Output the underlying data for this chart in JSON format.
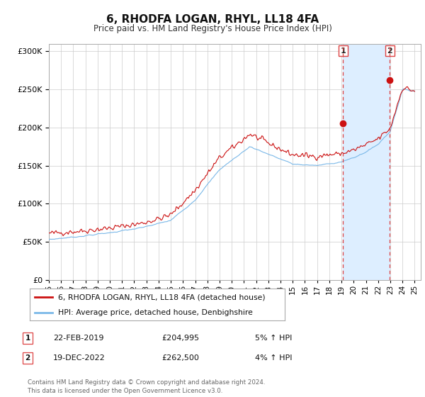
{
  "title": "6, RHODFA LOGAN, RHYL, LL18 4FA",
  "subtitle": "Price paid vs. HM Land Registry's House Price Index (HPI)",
  "legend_line1": "6, RHODFA LOGAN, RHYL, LL18 4FA (detached house)",
  "legend_line2": "HPI: Average price, detached house, Denbighshire",
  "sale1_label": "1",
  "sale1_date": "22-FEB-2019",
  "sale1_price": "£204,995",
  "sale1_hpi": "5% ↑ HPI",
  "sale1_year": 2019.13,
  "sale1_value": 204995,
  "sale2_label": "2",
  "sale2_date": "19-DEC-2022",
  "sale2_price": "£262,500",
  "sale2_hpi": "4% ↑ HPI",
  "sale2_year": 2022.97,
  "sale2_value": 262500,
  "hpi_color": "#7ab8e8",
  "price_color": "#cc1111",
  "marker_color": "#cc1111",
  "dashed_line_color": "#dd4444",
  "shade_color": "#ddeeff",
  "background_color": "#ffffff",
  "grid_color": "#cccccc",
  "footer": "Contains HM Land Registry data © Crown copyright and database right 2024.\nThis data is licensed under the Open Government Licence v3.0.",
  "ylim": [
    0,
    310000
  ],
  "xlim_start": 1995,
  "xlim_end": 2025.5
}
